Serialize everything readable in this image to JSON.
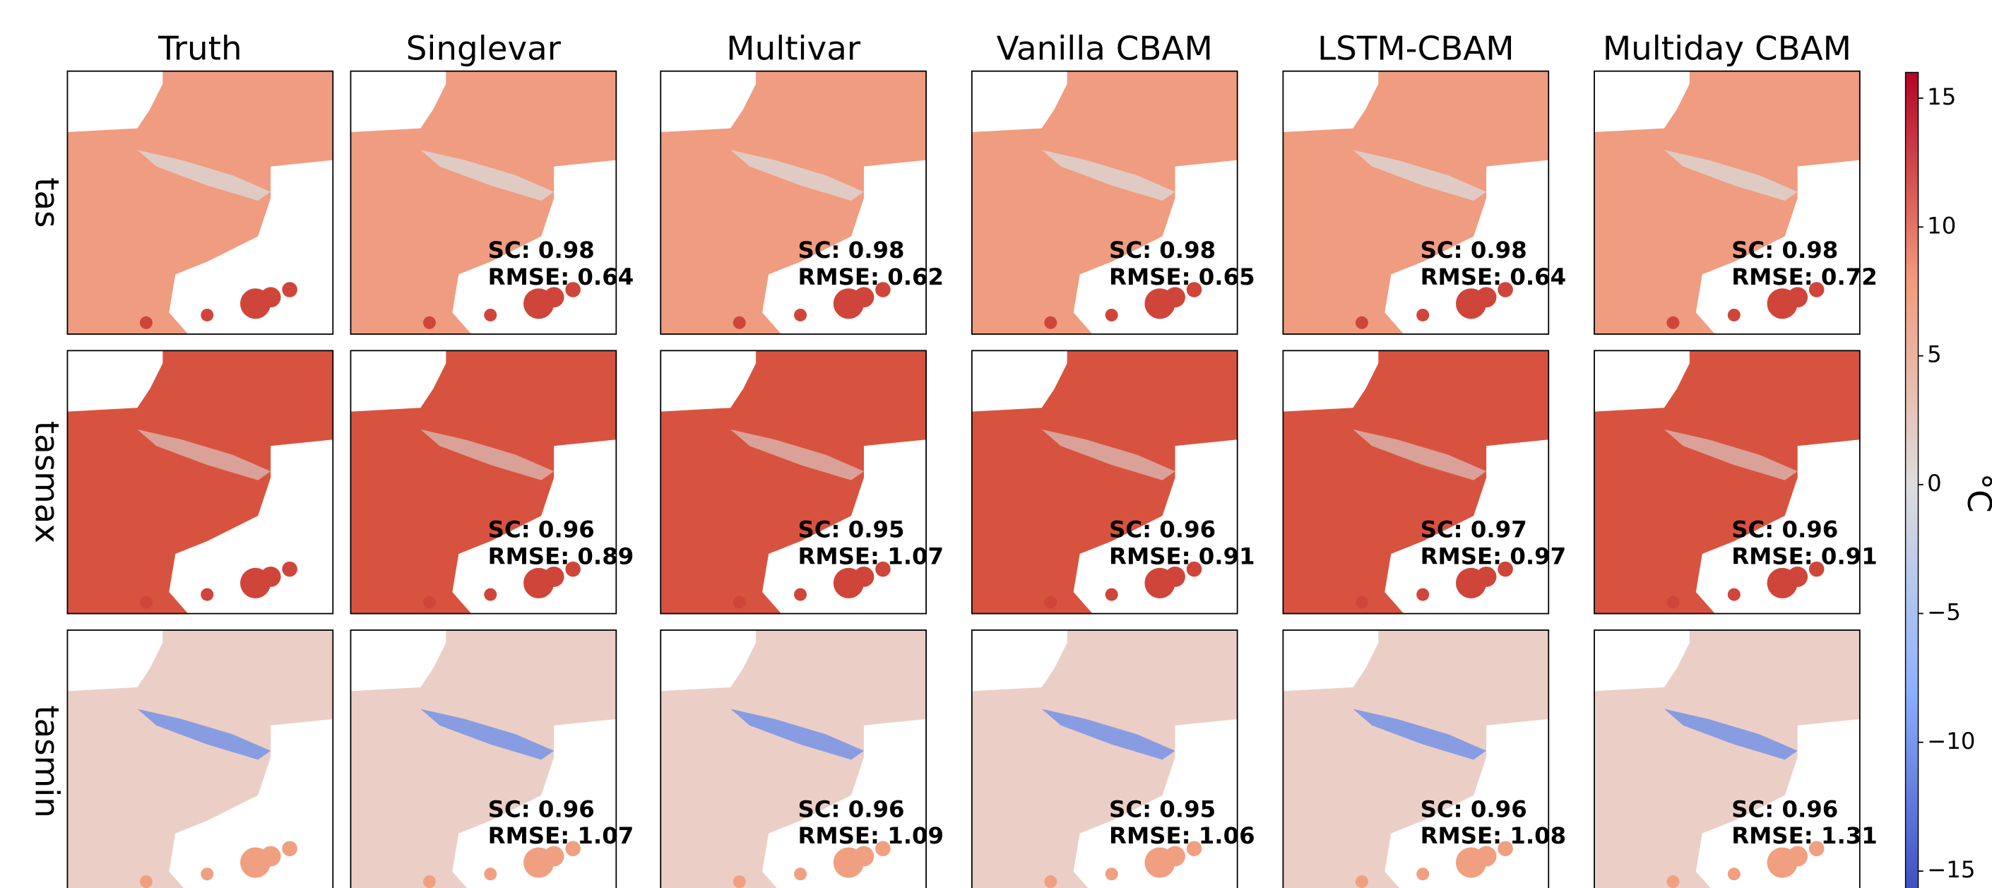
{
  "columns": [
    "Truth",
    "Singlevar",
    "Multivar",
    "Vanilla CBAM",
    "LSTM-CBAM",
    "Multiday CBAM"
  ],
  "rows": [
    {
      "label": "tas",
      "color": "#ef9c80"
    },
    {
      "label": "tasmax",
      "color": "#d8533f"
    },
    {
      "label": "tasmin",
      "color": "#ebcfc6"
    }
  ],
  "metrics": [
    [
      null,
      {
        "sc": "SC: 0.98",
        "rmse": "RMSE: 0.64"
      },
      {
        "sc": "SC: 0.98",
        "rmse": "RMSE: 0.62"
      },
      {
        "sc": "SC: 0.98",
        "rmse": "RMSE: 0.65"
      },
      {
        "sc": "SC: 0.98",
        "rmse": "RMSE: 0.64"
      },
      {
        "sc": "SC: 0.98",
        "rmse": "RMSE: 0.72"
      }
    ],
    [
      null,
      {
        "sc": "SC: 0.96",
        "rmse": "RMSE: 0.89"
      },
      {
        "sc": "SC: 0.95",
        "rmse": "RMSE: 1.07"
      },
      {
        "sc": "SC: 0.96",
        "rmse": "RMSE: 0.91"
      },
      {
        "sc": "SC: 0.97",
        "rmse": "RMSE: 0.97"
      },
      {
        "sc": "SC: 0.96",
        "rmse": "RMSE: 0.91"
      }
    ],
    [
      null,
      {
        "sc": "SC: 0.96",
        "rmse": "RMSE: 1.07"
      },
      {
        "sc": "SC: 0.96",
        "rmse": "RMSE: 1.09"
      },
      {
        "sc": "SC: 0.95",
        "rmse": "RMSE: 1.06"
      },
      {
        "sc": "SC: 0.96",
        "rmse": "RMSE: 1.08"
      },
      {
        "sc": "SC: 0.96",
        "rmse": "RMSE: 1.31"
      }
    ]
  ],
  "colorbar": {
    "label": "°C",
    "lim": [
      -16,
      16
    ],
    "ticks": [
      {
        "value": -15,
        "label": "−15"
      },
      {
        "value": -10,
        "label": "−10"
      },
      {
        "value": -5,
        "label": "−5"
      },
      0,
      5,
      10,
      15
    ]
  }
}
